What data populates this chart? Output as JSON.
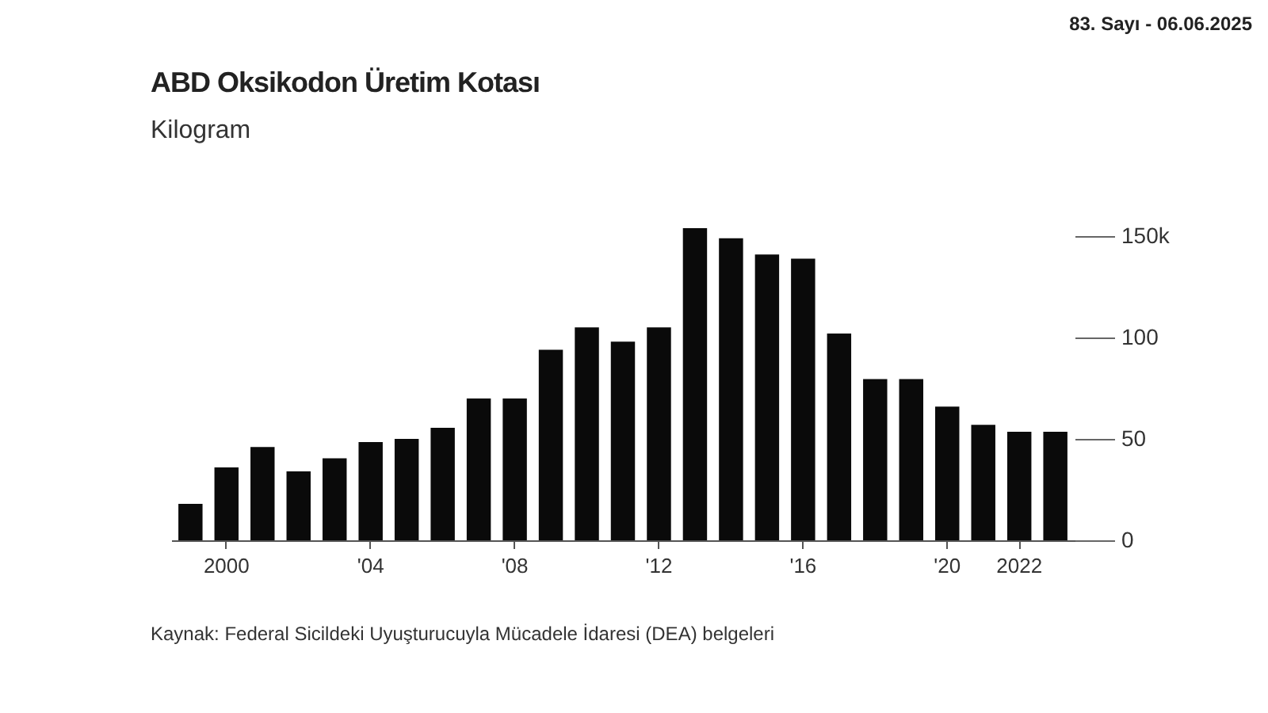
{
  "chart_data": {
    "type": "bar",
    "title": "ABD Oksikodon Üretim Kotası",
    "subtitle": "Kilogram",
    "annotations": [
      "83. Sayı - 06.06.2025",
      "Kaynak: Federal Sicildeki Uyuşturucuyla Mücadele İdaresi (DEA) belgeleri"
    ],
    "categories": [
      null,
      "2000",
      null,
      null,
      null,
      "'04",
      null,
      null,
      null,
      "'08",
      null,
      null,
      null,
      "'12",
      null,
      null,
      null,
      "'16",
      null,
      null,
      null,
      "'20",
      null,
      "2022",
      null
    ],
    "values": [
      18,
      36,
      46,
      34,
      40.5,
      48.5,
      50,
      55.5,
      70,
      70,
      94,
      105,
      98,
      105,
      154,
      149,
      141,
      139,
      102,
      79.5,
      79.5,
      66,
      57,
      53.5,
      53.5
    ],
    "color": "#0a0a0a",
    "ylim": [
      0,
      154
    ],
    "yticks": [
      0,
      50,
      100,
      {
        "value": 150,
        "label": "150k"
      }
    ],
    "grid": false
  }
}
